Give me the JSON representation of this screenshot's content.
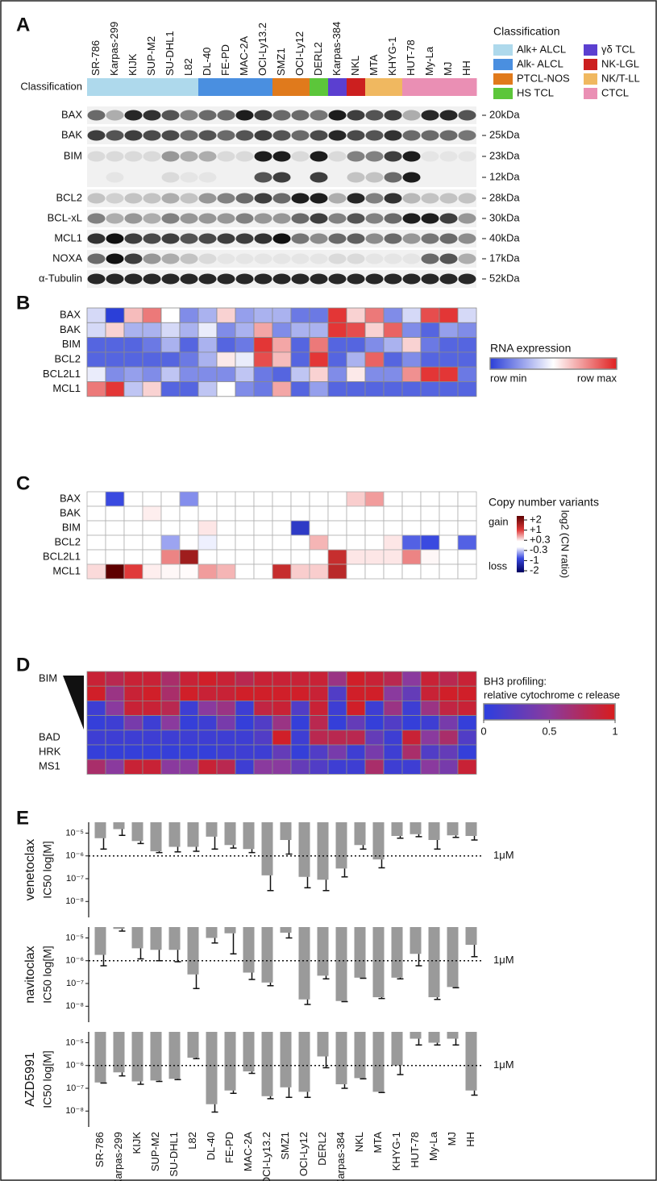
{
  "panel_labels": [
    "A",
    "B",
    "C",
    "D",
    "E"
  ],
  "cell_lines": [
    "SR-786",
    "Karpas-299",
    "KIJK",
    "SUP-M2",
    "SU-DHL1",
    "L82",
    "DL-40",
    "FE-PD",
    "MAC-2A",
    "OCI-Ly13.2",
    "SMZ1",
    "OCI-Ly12",
    "DERL2",
    "Karpas-384",
    "NKL",
    "MTA",
    "KHYG-1",
    "HUT-78",
    "My-La",
    "MJ",
    "HH"
  ],
  "classification": {
    "title": "Classification",
    "row_label": "Classification",
    "groups": [
      {
        "name": "Alk+ ALCL",
        "color": "#aed9ec"
      },
      {
        "name": "Alk- ALCL",
        "color": "#4a8fe0"
      },
      {
        "name": "PTCL-NOS",
        "color": "#e07a1c"
      },
      {
        "name": "HS TCL",
        "color": "#5cc63a"
      },
      {
        "name": "γδ TCL",
        "color": "#5b3fd0"
      },
      {
        "name": "NK-LGL",
        "color": "#cc1f1f"
      },
      {
        "name": "NK/T-LL",
        "color": "#f0b860"
      },
      {
        "name": "CTCL",
        "color": "#ea8fb4"
      }
    ],
    "cell_class": [
      "Alk+ ALCL",
      "Alk+ ALCL",
      "Alk+ ALCL",
      "Alk+ ALCL",
      "Alk+ ALCL",
      "Alk+ ALCL",
      "Alk- ALCL",
      "Alk- ALCL",
      "Alk- ALCL",
      "Alk- ALCL",
      "PTCL-NOS",
      "PTCL-NOS",
      "HS TCL",
      "γδ TCL",
      "NK-LGL",
      "NK/T-LL",
      "NK/T-LL",
      "CTCL",
      "CTCL",
      "CTCL",
      "CTCL"
    ]
  },
  "western_blot": {
    "rows": [
      {
        "label": "BAX",
        "markers": [
          "20kDa"
        ],
        "bands": [
          [
            0.6,
            0.3,
            0.9,
            0.85,
            0.7,
            0.5,
            0.6,
            0.6,
            0.95,
            0.8,
            0.6,
            0.6,
            0.55,
            0.95,
            0.8,
            0.7,
            0.8,
            0.3,
            0.9,
            0.9,
            0.7
          ]
        ]
      },
      {
        "label": "BAK",
        "markers": [
          "25kDa"
        ],
        "bands": [
          [
            0.8,
            0.7,
            0.8,
            0.75,
            0.75,
            0.6,
            0.7,
            0.6,
            0.7,
            0.8,
            0.7,
            0.6,
            0.75,
            0.9,
            0.75,
            0.7,
            0.85,
            0.6,
            0.6,
            0.6,
            0.55
          ]
        ]
      },
      {
        "label": "BIM",
        "markers": [
          "23kDa",
          "12kDa"
        ],
        "bands": [
          [
            0.1,
            0.1,
            0.1,
            0.1,
            0.4,
            0.3,
            0.3,
            0.1,
            0.1,
            0.95,
            0.95,
            0.1,
            0.95,
            0.1,
            0.5,
            0.5,
            0.8,
            0.95,
            0.05,
            0.05,
            0.05
          ],
          [
            0,
            0.05,
            0,
            0,
            0.1,
            0.05,
            0.05,
            0,
            0,
            0.7,
            0.8,
            0,
            0.8,
            0,
            0.2,
            0.2,
            0.6,
            0.95,
            0,
            0,
            0
          ]
        ]
      },
      {
        "label": "BCL2",
        "markers": [
          "28kDa"
        ],
        "bands": [
          [
            0.2,
            0.15,
            0.2,
            0.2,
            0.3,
            0.2,
            0.4,
            0.5,
            0.6,
            0.8,
            0.6,
            0.95,
            0.95,
            0.3,
            0.9,
            0.5,
            0.85,
            0.25,
            0.2,
            0.2,
            0.2
          ]
        ]
      },
      {
        "label": "BCL-xL",
        "markers": [
          "30kDa"
        ],
        "bands": [
          [
            0.5,
            0.3,
            0.4,
            0.3,
            0.5,
            0.4,
            0.4,
            0.4,
            0.5,
            0.4,
            0.4,
            0.6,
            0.8,
            0.5,
            0.7,
            0.5,
            0.6,
            0.95,
            0.95,
            0.8,
            0.4
          ]
        ]
      },
      {
        "label": "MCL1",
        "markers": [
          "40kDa"
        ],
        "bands": [
          [
            0.85,
            1,
            0.8,
            0.75,
            0.8,
            0.7,
            0.75,
            0.8,
            0.8,
            0.85,
            1,
            0.55,
            0.45,
            0.6,
            0.65,
            0.45,
            0.6,
            0.4,
            0.55,
            0.6,
            0.45
          ]
        ]
      },
      {
        "label": "NOXA",
        "markers": [
          "17kDa"
        ],
        "bands": [
          [
            0.6,
            1,
            0.8,
            0.4,
            0.3,
            0.2,
            0.1,
            0.05,
            0.05,
            0.05,
            0.05,
            0.05,
            0.05,
            0.1,
            0.1,
            0.05,
            0.05,
            0.05,
            0.6,
            0.7,
            0.3
          ]
        ]
      },
      {
        "label": "α-Tubulin",
        "markers": [
          "52kDa"
        ],
        "bands": [
          [
            0.9,
            0.9,
            0.9,
            0.9,
            0.9,
            0.9,
            0.9,
            0.9,
            0.9,
            0.9,
            0.9,
            0.9,
            0.9,
            0.9,
            0.9,
            0.9,
            0.9,
            0.9,
            0.9,
            0.9,
            0.9
          ]
        ]
      }
    ]
  },
  "rna_heatmap": {
    "legend_title": "RNA expression",
    "min_label": "row min",
    "max_label": "row max",
    "rows": [
      {
        "label": "BAX",
        "values": [
          0.4,
          0.0,
          0.65,
          0.8,
          0.5,
          0.2,
          0.3,
          0.6,
          0.25,
          0.3,
          0.3,
          0.15,
          0.15,
          0.95,
          0.6,
          0.8,
          0.2,
          0.4,
          0.9,
          0.95,
          0.4
        ]
      },
      {
        "label": "BAK",
        "values": [
          0.4,
          0.6,
          0.3,
          0.3,
          0.4,
          0.3,
          0.45,
          0.2,
          0.3,
          0.7,
          0.2,
          0.3,
          0.3,
          0.95,
          0.9,
          0.6,
          0.85,
          0.2,
          0.1,
          0.25,
          0.2
        ]
      },
      {
        "label": "BIM",
        "values": [
          0.1,
          0.1,
          0.1,
          0.15,
          0.3,
          0.1,
          0.3,
          0.1,
          0.15,
          0.95,
          0.7,
          0.1,
          0.8,
          0.1,
          0.1,
          0.2,
          0.3,
          0.6,
          0.15,
          0.1,
          0.1
        ]
      },
      {
        "label": "BCL2",
        "values": [
          0.1,
          0.1,
          0.1,
          0.1,
          0.1,
          0.15,
          0.3,
          0.55,
          0.45,
          0.9,
          0.65,
          0.1,
          0.95,
          0.1,
          0.3,
          0.85,
          0.1,
          0.2,
          0.1,
          0.1,
          0.1
        ]
      },
      {
        "label": "BCL2L1",
        "values": [
          0.45,
          0.2,
          0.25,
          0.2,
          0.35,
          0.2,
          0.2,
          0.2,
          0.35,
          0.15,
          0.1,
          0.35,
          0.6,
          0.2,
          0.55,
          0.2,
          0.2,
          0.75,
          0.95,
          0.95,
          0.15
        ]
      },
      {
        "label": "MCL1",
        "values": [
          0.8,
          0.95,
          0.35,
          0.6,
          0.1,
          0.1,
          0.35,
          0.5,
          0.2,
          0.15,
          0.7,
          0.1,
          0.25,
          0.1,
          0.1,
          0.1,
          0.1,
          0.1,
          0.1,
          0.1,
          0.1
        ]
      }
    ]
  },
  "cnv_heatmap": {
    "legend_title": "Copy number variants",
    "gain_label": "gain",
    "loss_label": "loss",
    "axis_label": "log2 (CN ratio)",
    "ticks": [
      {
        "value": 2,
        "label": "+2"
      },
      {
        "value": 1,
        "label": "+1"
      },
      {
        "value": 0.3,
        "label": "+0.3"
      },
      -0.3,
      -1,
      -2
    ],
    "rows": [
      {
        "label": "BAX",
        "values": [
          0,
          -1,
          0,
          0,
          0,
          -0.7,
          0,
          0,
          0,
          0,
          0,
          0,
          0,
          0,
          0.4,
          0.6,
          0,
          0,
          0,
          0,
          0
        ]
      },
      {
        "label": "BAK",
        "values": [
          0,
          0,
          0,
          0.2,
          0,
          0,
          0,
          0,
          0,
          0,
          0,
          0,
          0,
          0,
          0,
          0,
          0,
          0,
          0,
          0,
          0
        ]
      },
      {
        "label": "BIM",
        "values": [
          0,
          0,
          0,
          0,
          0,
          0,
          0.3,
          0,
          0,
          0,
          0,
          -1.2,
          0,
          0,
          0,
          0,
          0,
          0,
          0,
          0,
          0
        ]
      },
      {
        "label": "BCL2",
        "values": [
          0,
          0,
          0,
          0,
          -0.6,
          0,
          -0.2,
          0,
          0,
          0,
          0,
          0,
          0.5,
          0,
          0,
          0,
          0.3,
          -0.9,
          -1,
          0,
          -0.9
        ]
      },
      {
        "label": "BCL2L1",
        "values": [
          0,
          0,
          0,
          0,
          0.7,
          1.5,
          0,
          0,
          0,
          0,
          0,
          0,
          0,
          1.2,
          0.3,
          0.3,
          0.3,
          0.7,
          0.1,
          0,
          0
        ]
      },
      {
        "label": "MCL1",
        "values": [
          0.35,
          2,
          1,
          0.2,
          0.1,
          0.05,
          0.6,
          0.5,
          0,
          0,
          1.2,
          0.4,
          0.4,
          1.3,
          0,
          0,
          0,
          0,
          0,
          0,
          0
        ]
      }
    ]
  },
  "bh3_heatmap": {
    "legend_title": "BH3 profiling:",
    "legend_subtitle": "relative cytochrome c release",
    "ticks": [
      0,
      0.5,
      1
    ],
    "rows": [
      {
        "label": "BIM",
        "values": [
          0.9,
          0.8,
          0.9,
          0.9,
          0.7,
          0.9,
          0.95,
          0.9,
          0.8,
          0.9,
          0.9,
          0.9,
          0.9,
          0.6,
          0.95,
          0.9,
          0.8,
          0.5,
          0.9,
          0.8,
          0.9
        ]
      },
      {
        "label": null,
        "values": [
          0.95,
          0.6,
          0.9,
          0.95,
          0.7,
          0.95,
          0.9,
          0.9,
          0.95,
          0.95,
          0.95,
          0.95,
          0.9,
          0.2,
          0.95,
          0.95,
          0.5,
          0.3,
          0.9,
          0.95,
          0.95
        ]
      },
      {
        "label": null,
        "values": [
          0.1,
          0.5,
          0.9,
          0.9,
          0.8,
          0.1,
          0.5,
          0.6,
          0.1,
          0.85,
          0.9,
          0.2,
          0.9,
          0.1,
          0.95,
          0.1,
          0.6,
          0.1,
          0.6,
          0.85,
          0.9
        ]
      },
      {
        "label": null,
        "values": [
          0.05,
          0.1,
          0.4,
          0.1,
          0.5,
          0.05,
          0.1,
          0.4,
          0.05,
          0.2,
          0.6,
          0.05,
          0.8,
          0.05,
          0.3,
          0.05,
          0.2,
          0.05,
          0.1,
          0.4,
          0.05
        ]
      },
      {
        "label": "BAD",
        "values": [
          0.1,
          0.1,
          0.1,
          0.1,
          0.1,
          0.1,
          0.1,
          0.1,
          0.1,
          0.2,
          0.95,
          0.1,
          0.8,
          0.8,
          0.8,
          0.3,
          0.1,
          0.9,
          0.5,
          0.7,
          0.2
        ]
      },
      {
        "label": "HRK",
        "values": [
          0.05,
          0.05,
          0.05,
          0.05,
          0.05,
          0.05,
          0.05,
          0.1,
          0.1,
          0.1,
          0.3,
          0.05,
          0.2,
          0.4,
          0.1,
          0.4,
          0.1,
          0.7,
          0.2,
          0.3,
          0.05
        ]
      },
      {
        "label": "MS1",
        "values": [
          0.7,
          0.5,
          0.9,
          0.9,
          0.5,
          0.5,
          0.9,
          0.8,
          0.1,
          0.5,
          0.5,
          0.3,
          0.2,
          0.1,
          0.1,
          0.7,
          0.1,
          0.1,
          0.5,
          0.4,
          0.9
        ]
      }
    ]
  },
  "ic50": {
    "ylabel": "IC50 log[M]",
    "log_scale": true,
    "color": "#9a9a9a",
    "ylim": [
      2e-09,
      3e-05
    ],
    "yticks": [
      {
        "value": 1e-05,
        "label": "10⁻⁵"
      },
      {
        "value": 1e-06,
        "label": "10⁻⁶"
      },
      {
        "value": 1e-07,
        "label": "10⁻⁷"
      },
      {
        "value": 1e-08,
        "label": "10⁻⁸"
      }
    ],
    "reference_line": {
      "value": 1e-06,
      "label": "1μM"
    },
    "charts": [
      {
        "drug": "venetoclax",
        "values": [
          6e-06,
          1.5e-05,
          4.5e-06,
          1.6e-06,
          2.5e-06,
          2.5e-06,
          7e-06,
          3e-06,
          2e-06,
          1.4e-07,
          5e-06,
          1.2e-07,
          9e-08,
          2.8e-07,
          3e-06,
          7e-07,
          7.5e-06,
          9e-06,
          5e-06,
          8e-06,
          7.5e-06
        ],
        "error_low": [
          2e-06,
          8e-06,
          3.5e-06,
          1.4e-06,
          1.5e-06,
          1.6e-06,
          2e-06,
          2.2e-06,
          1.4e-06,
          3e-08,
          1.2e-06,
          4e-08,
          3e-08,
          1.2e-07,
          2e-06,
          3e-07,
          6e-06,
          7e-06,
          2e-06,
          6.5e-06,
          5e-06
        ]
      },
      {
        "drug": "navitoclax",
        "values": [
          1.8e-06,
          2.5e-05,
          3.5e-06,
          3e-06,
          3e-06,
          2.5e-07,
          1e-05,
          1.6e-05,
          3e-07,
          1.1e-07,
          1.7e-05,
          2e-08,
          2.2e-07,
          1.7e-08,
          1.8e-07,
          2.5e-08,
          1.8e-07,
          2e-06,
          2.5e-08,
          7e-08,
          5e-06
        ],
        "error_low": [
          6e-07,
          2e-05,
          1.2e-06,
          1e-06,
          9e-07,
          6e-08,
          6e-06,
          2e-06,
          1.5e-07,
          8e-08,
          1e-05,
          1.2e-08,
          1.6e-07,
          1.6e-08,
          1.7e-07,
          2.2e-08,
          1.6e-07,
          6e-07,
          2e-08,
          6.5e-08,
          1.5e-06
        ]
      },
      {
        "drug": "AZD5991",
        "values": [
          1.8e-07,
          5e-07,
          2e-07,
          2.2e-07,
          2.6e-07,
          2.2e-06,
          2e-08,
          8e-08,
          5.5e-07,
          4.5e-08,
          1.1e-07,
          7e-08,
          2.5e-06,
          1.5e-07,
          2.8e-07,
          7e-08,
          1e-06,
          1.5e-05,
          1e-05,
          1.5e-05,
          8e-08
        ],
        "error_low": [
          1.7e-07,
          3.5e-07,
          1.5e-07,
          2e-07,
          2.4e-07,
          2e-06,
          9e-09,
          6e-08,
          4.5e-07,
          3.5e-08,
          4e-08,
          4e-08,
          8e-07,
          1e-07,
          2.6e-07,
          6.5e-08,
          4e-07,
          8e-06,
          8e-06,
          8e-06,
          5e-08
        ]
      }
    ]
  }
}
